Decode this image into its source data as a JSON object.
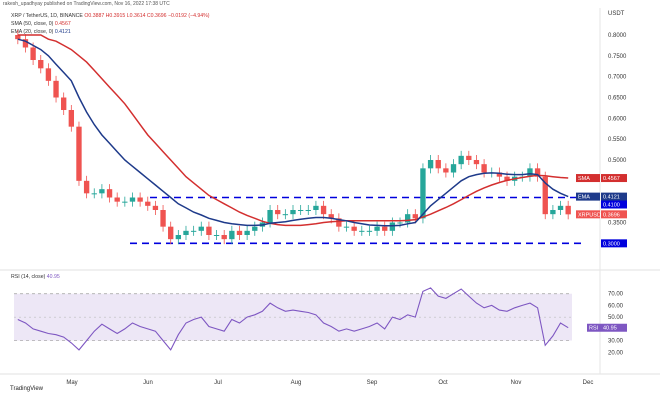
{
  "header": {
    "publisher": "rakesh_upadhyay published on TradingView.com, Nov 16, 2022 17:38 UTC"
  },
  "price_info": {
    "symbol": "XRP / TetherUS, 1D, BINANCE",
    "ohlc": "O0.3887 H0.3915 L0.3614 C0.3696 −0.0192 (−4.94%)",
    "sma_line": "SMA (50, close, 0)",
    "sma_value": "0.4567",
    "ema_line": "EMA (20, close, 0)",
    "ema_value": "0.4121"
  },
  "rsi_info": {
    "label": "RSI (14, close)",
    "value": "40.95"
  },
  "footer": {
    "logo_text": "TradingView"
  },
  "currency": "USDT",
  "colors": {
    "up": "#26a69a",
    "down": "#ef5350",
    "ema": "#1e3a8a",
    "sma": "#d32f2f",
    "level": "#0000dd",
    "rsi": "#7e57c2"
  },
  "chart_data": [
    {
      "type": "candlestick",
      "title": "XRP / TetherUS, 1D, BINANCE",
      "x": [
        "Apr 15",
        "Apr 18",
        "Apr 21",
        "Apr 24",
        "Apr 27",
        "Apr 30",
        "May 3",
        "May 6",
        "May 9",
        "May 12",
        "May 15",
        "May 18",
        "May 21",
        "May 24",
        "May 27",
        "May 30",
        "Jun 2",
        "Jun 5",
        "Jun 8",
        "Jun 11",
        "Jun 14",
        "Jun 17",
        "Jun 20",
        "Jun 23",
        "Jun 26",
        "Jun 29",
        "Jul 2",
        "Jul 5",
        "Jul 8",
        "Jul 11",
        "Jul 14",
        "Jul 17",
        "Jul 20",
        "Jul 23",
        "Jul 26",
        "Jul 29",
        "Aug 1",
        "Aug 4",
        "Aug 7",
        "Aug 10",
        "Aug 13",
        "Aug 16",
        "Aug 19",
        "Aug 22",
        "Aug 25",
        "Aug 28",
        "Aug 31",
        "Sep 3",
        "Sep 6",
        "Sep 9",
        "Sep 12",
        "Sep 15",
        "Sep 18",
        "Sep 21",
        "Sep 24",
        "Sep 27",
        "Sep 30",
        "Oct 3",
        "Oct 6",
        "Oct 9",
        "Oct 12",
        "Oct 15",
        "Oct 18",
        "Oct 21",
        "Oct 24",
        "Oct 27",
        "Oct 30",
        "Nov 2",
        "Nov 5",
        "Nov 8",
        "Nov 11",
        "Nov 14",
        "Nov 16"
      ],
      "x_ticks": [
        "May",
        "Jun",
        "Jul",
        "Aug",
        "Sep",
        "Oct",
        "Nov",
        "Dec"
      ],
      "close": [
        0.79,
        0.77,
        0.74,
        0.72,
        0.69,
        0.65,
        0.62,
        0.58,
        0.45,
        0.42,
        0.42,
        0.43,
        0.41,
        0.4,
        0.4,
        0.41,
        0.4,
        0.39,
        0.38,
        0.34,
        0.31,
        0.32,
        0.33,
        0.33,
        0.34,
        0.32,
        0.32,
        0.31,
        0.33,
        0.32,
        0.33,
        0.34,
        0.35,
        0.38,
        0.37,
        0.37,
        0.38,
        0.38,
        0.38,
        0.39,
        0.37,
        0.36,
        0.34,
        0.34,
        0.33,
        0.33,
        0.33,
        0.34,
        0.33,
        0.35,
        0.35,
        0.37,
        0.36,
        0.48,
        0.5,
        0.48,
        0.47,
        0.49,
        0.51,
        0.5,
        0.49,
        0.47,
        0.47,
        0.46,
        0.45,
        0.46,
        0.46,
        0.48,
        0.46,
        0.37,
        0.38,
        0.39,
        0.3696
      ],
      "ema20": [
        0.79,
        0.785,
        0.775,
        0.765,
        0.75,
        0.73,
        0.71,
        0.69,
        0.65,
        0.615,
        0.585,
        0.56,
        0.54,
        0.52,
        0.5,
        0.485,
        0.47,
        0.455,
        0.44,
        0.425,
        0.41,
        0.395,
        0.385,
        0.375,
        0.368,
        0.36,
        0.355,
        0.35,
        0.347,
        0.345,
        0.343,
        0.343,
        0.344,
        0.348,
        0.35,
        0.352,
        0.355,
        0.358,
        0.36,
        0.362,
        0.362,
        0.36,
        0.357,
        0.354,
        0.35,
        0.347,
        0.344,
        0.343,
        0.342,
        0.342,
        0.343,
        0.347,
        0.35,
        0.37,
        0.39,
        0.405,
        0.42,
        0.435,
        0.45,
        0.46,
        0.465,
        0.468,
        0.469,
        0.468,
        0.466,
        0.465,
        0.465,
        0.467,
        0.465,
        0.445,
        0.43,
        0.42,
        0.4121
      ],
      "sma50": [
        0.8,
        0.8,
        0.8,
        0.8,
        0.79,
        0.785,
        0.775,
        0.765,
        0.75,
        0.735,
        0.715,
        0.695,
        0.675,
        0.655,
        0.635,
        0.61,
        0.585,
        0.56,
        0.54,
        0.52,
        0.5,
        0.48,
        0.46,
        0.445,
        0.43,
        0.415,
        0.405,
        0.395,
        0.385,
        0.375,
        0.367,
        0.36,
        0.353,
        0.348,
        0.345,
        0.343,
        0.343,
        0.343,
        0.345,
        0.347,
        0.35,
        0.352,
        0.353,
        0.354,
        0.354,
        0.354,
        0.354,
        0.354,
        0.354,
        0.354,
        0.354,
        0.355,
        0.357,
        0.363,
        0.37,
        0.378,
        0.386,
        0.395,
        0.405,
        0.415,
        0.425,
        0.433,
        0.44,
        0.446,
        0.451,
        0.455,
        0.458,
        0.461,
        0.463,
        0.462,
        0.46,
        0.458,
        0.4567
      ],
      "levels": [
        0.41,
        0.3
      ],
      "ylim": [
        0.26,
        0.86
      ],
      "y_ticks": [
        "0.8000",
        "0.7500",
        "0.7000",
        "0.6500",
        "0.6000",
        "0.5500",
        "0.5000",
        "0.3500",
        "0.3000"
      ],
      "tags": [
        {
          "label": "SMA",
          "value": "0.4567",
          "color": "#d32f2f"
        },
        {
          "label": "EMA",
          "value": "0.4121",
          "color": "#1e3a8a"
        },
        {
          "label": "",
          "value": "0.4100",
          "color": "#0000dd"
        },
        {
          "label": "XRPUSDT",
          "value": "0.3696",
          "color": "#ef5350"
        },
        {
          "label": "",
          "value": "0.3000",
          "color": "#0000dd"
        }
      ]
    },
    {
      "type": "line",
      "title": "RSI (14, close)",
      "x": [
        "Apr 15",
        "Apr 18",
        "Apr 21",
        "Apr 24",
        "Apr 27",
        "Apr 30",
        "May 3",
        "May 6",
        "May 9",
        "May 12",
        "May 15",
        "May 18",
        "May 21",
        "May 24",
        "May 27",
        "May 30",
        "Jun 2",
        "Jun 5",
        "Jun 8",
        "Jun 11",
        "Jun 14",
        "Jun 17",
        "Jun 20",
        "Jun 23",
        "Jun 26",
        "Jun 29",
        "Jul 2",
        "Jul 5",
        "Jul 8",
        "Jul 11",
        "Jul 14",
        "Jul 17",
        "Jul 20",
        "Jul 23",
        "Jul 26",
        "Jul 29",
        "Aug 1",
        "Aug 4",
        "Aug 7",
        "Aug 10",
        "Aug 13",
        "Aug 16",
        "Aug 19",
        "Aug 22",
        "Aug 25",
        "Aug 28",
        "Aug 31",
        "Sep 3",
        "Sep 6",
        "Sep 9",
        "Sep 12",
        "Sep 15",
        "Sep 18",
        "Sep 21",
        "Sep 24",
        "Sep 27",
        "Sep 30",
        "Oct 3",
        "Oct 6",
        "Oct 9",
        "Oct 12",
        "Oct 15",
        "Oct 18",
        "Oct 21",
        "Oct 24",
        "Oct 27",
        "Oct 30",
        "Nov 2",
        "Nov 5",
        "Nov 8",
        "Nov 11",
        "Nov 14",
        "Nov 16"
      ],
      "values": [
        48,
        45,
        40,
        38,
        36,
        35,
        33,
        28,
        22,
        30,
        38,
        44,
        40,
        36,
        40,
        45,
        42,
        40,
        38,
        30,
        22,
        35,
        45,
        48,
        50,
        42,
        40,
        38,
        48,
        45,
        50,
        52,
        55,
        62,
        58,
        55,
        56,
        55,
        54,
        52,
        45,
        42,
        38,
        40,
        38,
        40,
        42,
        45,
        40,
        50,
        48,
        52,
        50,
        72,
        75,
        68,
        66,
        70,
        74,
        68,
        62,
        58,
        60,
        56,
        55,
        58,
        60,
        62,
        58,
        26,
        34,
        45,
        40.95
      ],
      "ylim": [
        10,
        80
      ],
      "y_ticks": [
        "70.00",
        "60.00",
        "50.00",
        "40.00",
        "30.00",
        "20.00"
      ],
      "bands": [
        30,
        70
      ]
    }
  ]
}
